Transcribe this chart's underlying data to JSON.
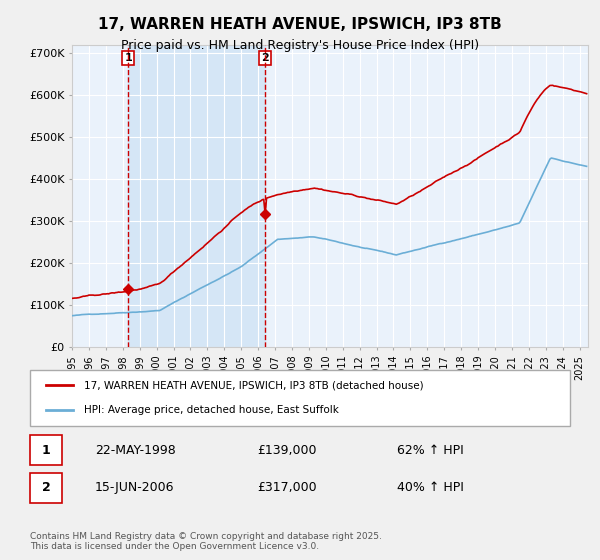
{
  "title": "17, WARREN HEATH AVENUE, IPSWICH, IP3 8TB",
  "subtitle": "Price paid vs. HM Land Registry's House Price Index (HPI)",
  "red_label": "17, WARREN HEATH AVENUE, IPSWICH, IP3 8TB (detached house)",
  "blue_label": "HPI: Average price, detached house, East Suffolk",
  "purchase1_date": "22-MAY-1998",
  "purchase1_price": 139000,
  "purchase1_pct": "62% ↑ HPI",
  "purchase2_date": "15-JUN-2006",
  "purchase2_price": 317000,
  "purchase2_pct": "40% ↑ HPI",
  "footer": "Contains HM Land Registry data © Crown copyright and database right 2025.\nThis data is licensed under the Open Government Licence v3.0.",
  "bg_color": "#dce9f5",
  "plot_bg": "#eaf2fb",
  "red_color": "#cc0000",
  "blue_color": "#6baed6",
  "vline_color": "#cc0000",
  "shaded_color": "#d0e4f5",
  "marker_color": "#cc0000",
  "grid_color": "#ffffff",
  "ylim": [
    0,
    720000
  ],
  "yticks": [
    0,
    100000,
    200000,
    300000,
    400000,
    500000,
    600000,
    700000
  ],
  "start_year": 1995,
  "end_year": 2025
}
